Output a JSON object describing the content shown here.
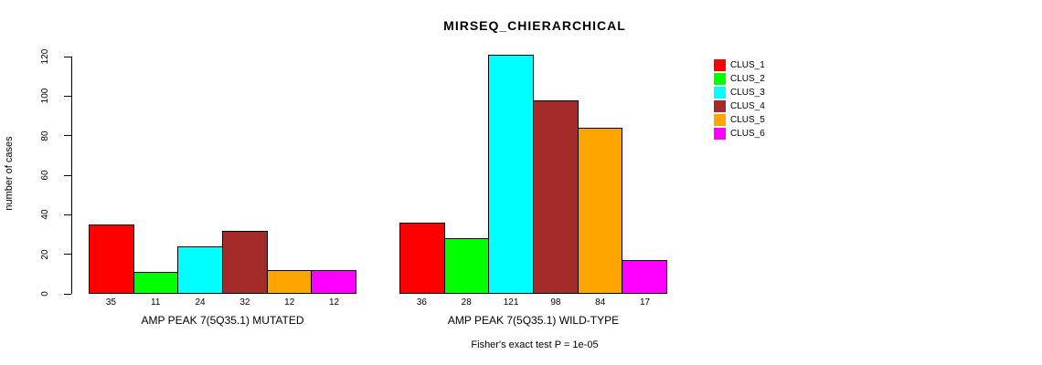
{
  "chart_data": {
    "type": "bar",
    "title": "MIRSEQ_CHIERARCHICAL",
    "ylabel": "number of cases",
    "ylim": [
      0,
      120
    ],
    "yticks": [
      0,
      20,
      40,
      60,
      80,
      100,
      120
    ],
    "grid": false,
    "legend_position": "right",
    "series_names": [
      "CLUS_1",
      "CLUS_2",
      "CLUS_3",
      "CLUS_4",
      "CLUS_5",
      "CLUS_6"
    ],
    "series_colors": [
      "#ff0000",
      "#00ff00",
      "#00ffff",
      "#a52a2a",
      "#ffa500",
      "#ff00ff"
    ],
    "groups": [
      {
        "label": "AMP PEAK  7(5Q35.1) MUTATED",
        "values": [
          35,
          11,
          24,
          32,
          12,
          12
        ]
      },
      {
        "label": "AMP PEAK  7(5Q35.1) WILD-TYPE",
        "values": [
          36,
          28,
          121,
          98,
          84,
          17
        ]
      }
    ],
    "footnote": "Fisher's exact test P = 1e-05"
  }
}
